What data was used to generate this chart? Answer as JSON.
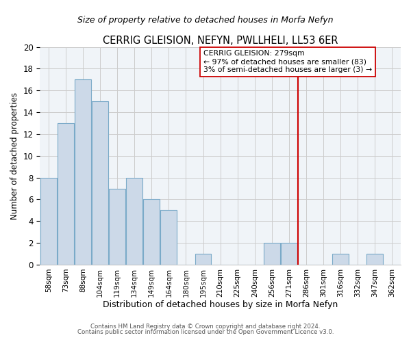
{
  "title": "CERRIG GLEISION, NEFYN, PWLLHELI, LL53 6ER",
  "subtitle": "Size of property relative to detached houses in Morfa Nefyn",
  "xlabel": "Distribution of detached houses by size in Morfa Nefyn",
  "ylabel": "Number of detached properties",
  "bin_labels": [
    "58sqm",
    "73sqm",
    "88sqm",
    "104sqm",
    "119sqm",
    "134sqm",
    "149sqm",
    "164sqm",
    "180sqm",
    "195sqm",
    "210sqm",
    "225sqm",
    "240sqm",
    "256sqm",
    "271sqm",
    "286sqm",
    "301sqm",
    "316sqm",
    "332sqm",
    "347sqm",
    "362sqm"
  ],
  "bar_values": [
    8,
    13,
    17,
    15,
    7,
    8,
    6,
    5,
    0,
    1,
    0,
    0,
    0,
    2,
    2,
    0,
    0,
    1,
    0,
    1,
    0
  ],
  "bar_color": "#ccd9e8",
  "bar_edge_color": "#7aaac8",
  "vline_x": 14.5,
  "vline_color": "#cc0000",
  "annotation_text": "CERRIG GLEISION: 279sqm\n← 97% of detached houses are smaller (83)\n3% of semi-detached houses are larger (3) →",
  "annotation_box_color": "#ffffff",
  "annotation_box_edge": "#cc0000",
  "ylim": [
    0,
    20
  ],
  "yticks": [
    0,
    2,
    4,
    6,
    8,
    10,
    12,
    14,
    16,
    18,
    20
  ],
  "bg_color": "#eef3f8",
  "footnote1": "Contains HM Land Registry data © Crown copyright and database right 2024.",
  "footnote2": "Contains public sector information licensed under the Open Government Licence v3.0."
}
